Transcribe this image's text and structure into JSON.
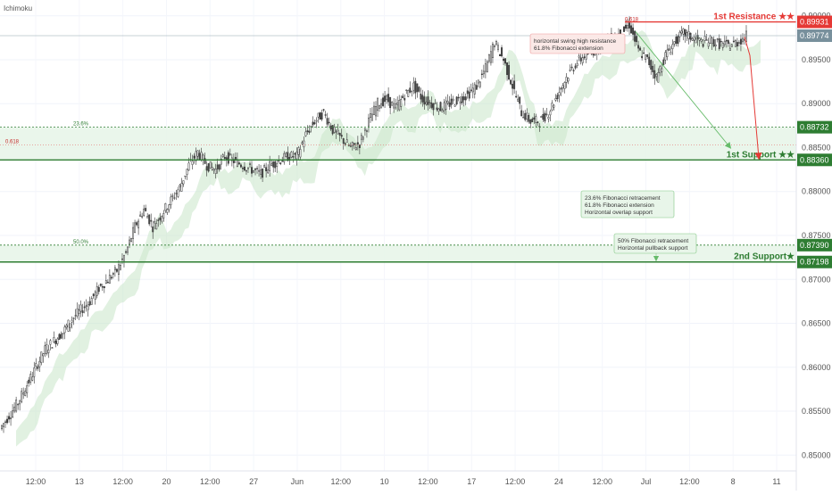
{
  "indicator_label": "Ichimoku",
  "colors": {
    "up": "#26a69a",
    "down": "#ef5350",
    "candle_body": "#4a4a4a",
    "cloud": "#c8e6c9",
    "resistance": "#e53935",
    "support": "#2e7d32",
    "zone_fill": "#e8f5e9",
    "last_price_tag": "#78909c"
  },
  "chart_data": {
    "type": "candlestick",
    "y_axis": {
      "ticks": [
        "0.85000",
        "0.85500",
        "0.86000",
        "0.86500",
        "0.87000",
        "0.87500",
        "0.88000",
        "0.88500",
        "0.89000",
        "0.89500",
        "0.90000"
      ],
      "ylim": [
        0.8482,
        0.9018
      ]
    },
    "x_axis": {
      "ticks": [
        "12:00",
        "13",
        "12:00",
        "20",
        "12:00",
        "27",
        "Jun",
        "12:00",
        "10",
        "12:00",
        "17",
        "12:00",
        "24",
        "12:00",
        "Jul",
        "12:00",
        "8",
        "11"
      ]
    },
    "last_price": "0.89774",
    "price_path": [
      0.853,
      0.8545,
      0.856,
      0.858,
      0.86,
      0.862,
      0.863,
      0.864,
      0.8655,
      0.8665,
      0.8675,
      0.869,
      0.87,
      0.871,
      0.873,
      0.876,
      0.878,
      0.876,
      0.8775,
      0.879,
      0.8805,
      0.883,
      0.8845,
      0.883,
      0.8825,
      0.884,
      0.8835,
      0.883,
      0.8825,
      0.882,
      0.883,
      0.8835,
      0.884,
      0.884,
      0.8865,
      0.888,
      0.889,
      0.887,
      0.886,
      0.885,
      0.8855,
      0.888,
      0.89,
      0.8905,
      0.8895,
      0.891,
      0.892,
      0.8905,
      0.89,
      0.8895,
      0.89,
      0.8905,
      0.891,
      0.892,
      0.894,
      0.897,
      0.895,
      0.892,
      0.889,
      0.888,
      0.888,
      0.889,
      0.891,
      0.893,
      0.8945,
      0.8955,
      0.896,
      0.897,
      0.8975,
      0.898,
      0.899,
      0.896,
      0.895,
      0.893,
      0.8955,
      0.897,
      0.898,
      0.8975,
      0.897,
      0.8972,
      0.8968,
      0.8966,
      0.897,
      0.8977
    ],
    "levels": [
      {
        "id": "first-resistance",
        "label": "1st Resistance ★★",
        "value": "0.89931",
        "price": 0.89931,
        "kind": "resistance"
      },
      {
        "id": "first-support",
        "label": "1st Support ★★",
        "value": "0.88360",
        "price": 0.8836,
        "kind": "support"
      },
      {
        "id": "fib-236",
        "label": "23.6%",
        "value": "0.88732",
        "price": 0.88732,
        "kind": "dotted"
      },
      {
        "id": "fib-50",
        "label": "50.0%",
        "value": "0.87390",
        "price": 0.8739,
        "kind": "dotted"
      },
      {
        "id": "second-support",
        "label": "2nd Support★",
        "value": "0.87198",
        "price": 0.87198,
        "kind": "support"
      }
    ],
    "fib_0618_label": "0.618",
    "fib_0618_price": 0.8853,
    "fib_top_label": "0.618",
    "annotations": [
      {
        "id": "resistance-note",
        "lines": [
          "horizontal swing high resistance",
          "61.8% Fibonacci extension"
        ],
        "kind": "resistance"
      },
      {
        "id": "support1-note",
        "lines": [
          "23.6% Fibonacci retracement",
          "61.8% Fibonacci extension",
          "Horizontal overlap support"
        ],
        "kind": "support"
      },
      {
        "id": "support2-note",
        "lines": [
          "50% Fibonacci retracement",
          "Horizontal pullback support"
        ],
        "kind": "support"
      }
    ]
  }
}
